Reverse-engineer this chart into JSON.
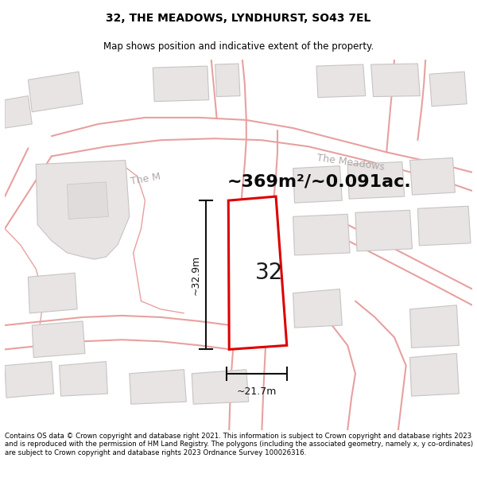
{
  "title": "32, THE MEADOWS, LYNDHURST, SO43 7EL",
  "subtitle": "Map shows position and indicative extent of the property.",
  "footer": "Contains OS data © Crown copyright and database right 2021. This information is subject to Crown copyright and database rights 2023 and is reproduced with the permission of HM Land Registry. The polygons (including the associated geometry, namely x, y co-ordinates) are subject to Crown copyright and database rights 2023 Ordnance Survey 100026316.",
  "area_label": "~369m²/~0.091ac.",
  "width_label": "~21.7m",
  "height_label": "~32.9m",
  "plot_number": "32",
  "bg_color": "#ffffff",
  "map_bg": "#ffffff",
  "plot_outline_color": "#dd0000",
  "road_line_color": "#e8a0a0",
  "building_fc": "#e8e4e4",
  "building_ec": "#c8c4c4",
  "road_label_color": "#b0a8a8",
  "dim_color": "#111111",
  "title_fontsize": 10,
  "subtitle_fontsize": 8.5,
  "footer_fontsize": 6.2,
  "area_fontsize": 16,
  "plot_label_fontsize": 20,
  "dim_fontsize": 9,
  "road_label_fontsize": 9
}
